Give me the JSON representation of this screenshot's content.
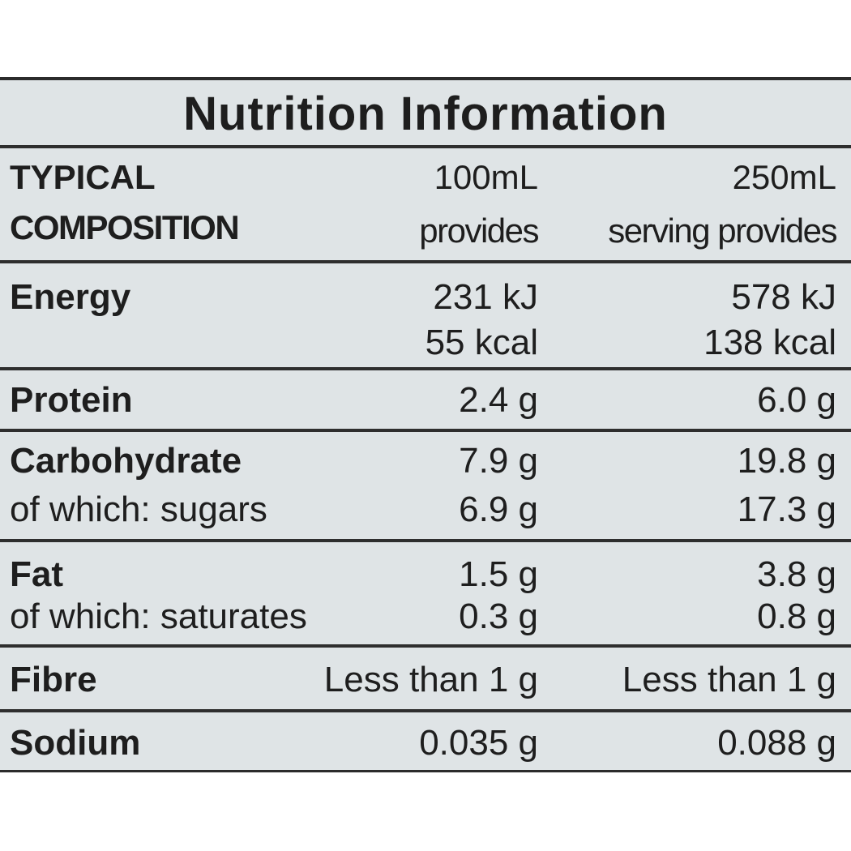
{
  "title": "Nutrition Information",
  "header": {
    "label_line1": "TYPICAL",
    "label_line2": "COMPOSITION",
    "col1_line1": "100mL",
    "col1_line2": "provides",
    "col2_line1": "250mL",
    "col2_line2": "serving provides"
  },
  "rows": [
    {
      "label": "Energy",
      "per100": "231 kJ",
      "perServing": "578 kJ",
      "bold": true
    },
    {
      "label": "",
      "per100": "55 kcal",
      "perServing": "138 kcal",
      "bold": false
    },
    {
      "label": "Protein",
      "per100": "2.4 g",
      "perServing": "6.0 g",
      "bold": true
    },
    {
      "label": "Carbohydrate",
      "per100": "7.9 g",
      "perServing": "19.8 g",
      "bold": true
    },
    {
      "label": "of which: sugars",
      "per100": "6.9 g",
      "perServing": "17.3 g",
      "bold": false
    },
    {
      "label": "Fat",
      "per100": "1.5 g",
      "perServing": "3.8 g",
      "bold": true
    },
    {
      "label": "of which: saturates",
      "per100": "0.3 g",
      "perServing": "0.8 g",
      "bold": false
    },
    {
      "label": "Fibre",
      "per100": "Less than 1 g",
      "perServing": "Less than 1 g",
      "bold": true
    },
    {
      "label": "Sodium",
      "per100": "0.035 g",
      "perServing": "0.088 g",
      "bold": true
    }
  ]
}
